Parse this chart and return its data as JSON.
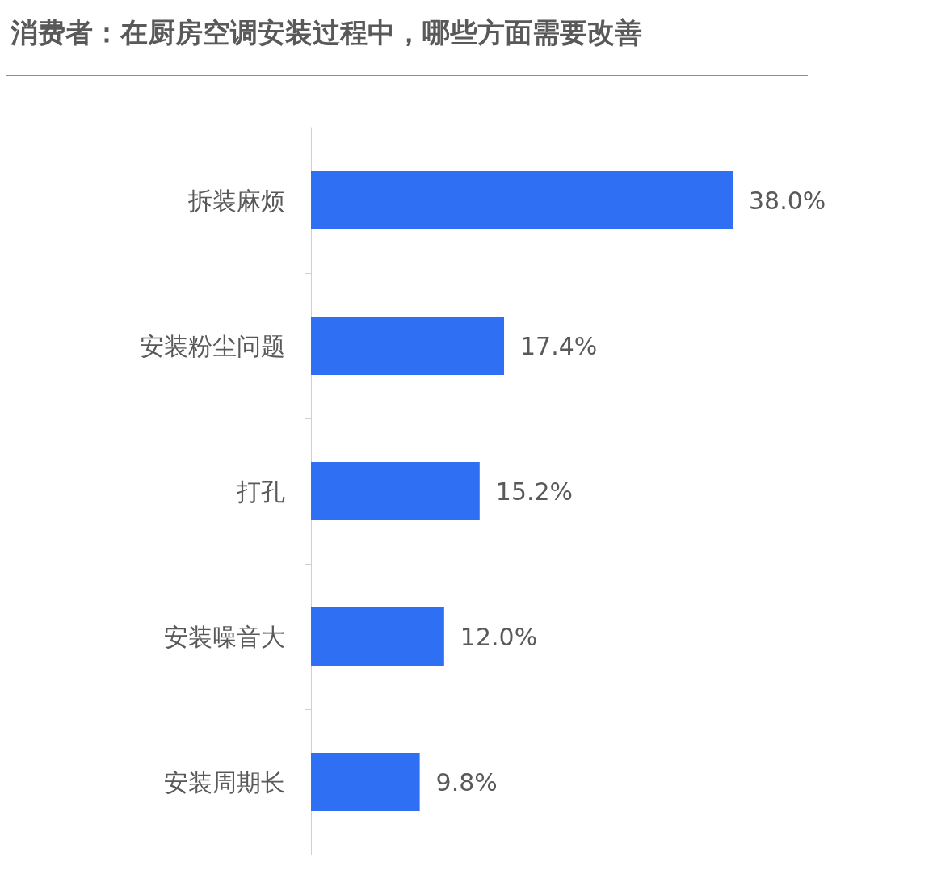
{
  "chart_data": {
    "type": "bar",
    "orientation": "horizontal",
    "title": "消费者：在厨房空调安装过程中，哪些方面需要改善",
    "categories": [
      "拆装麻烦",
      "安装粉尘问题",
      "打孔",
      "安装噪音大",
      "安装周期长"
    ],
    "values": [
      38.0,
      17.4,
      15.2,
      12.0,
      9.8
    ],
    "value_labels": [
      "38.0%",
      "17.4%",
      "15.2%",
      "12.0%",
      "9.8%"
    ],
    "color": "#2e6ff4"
  }
}
